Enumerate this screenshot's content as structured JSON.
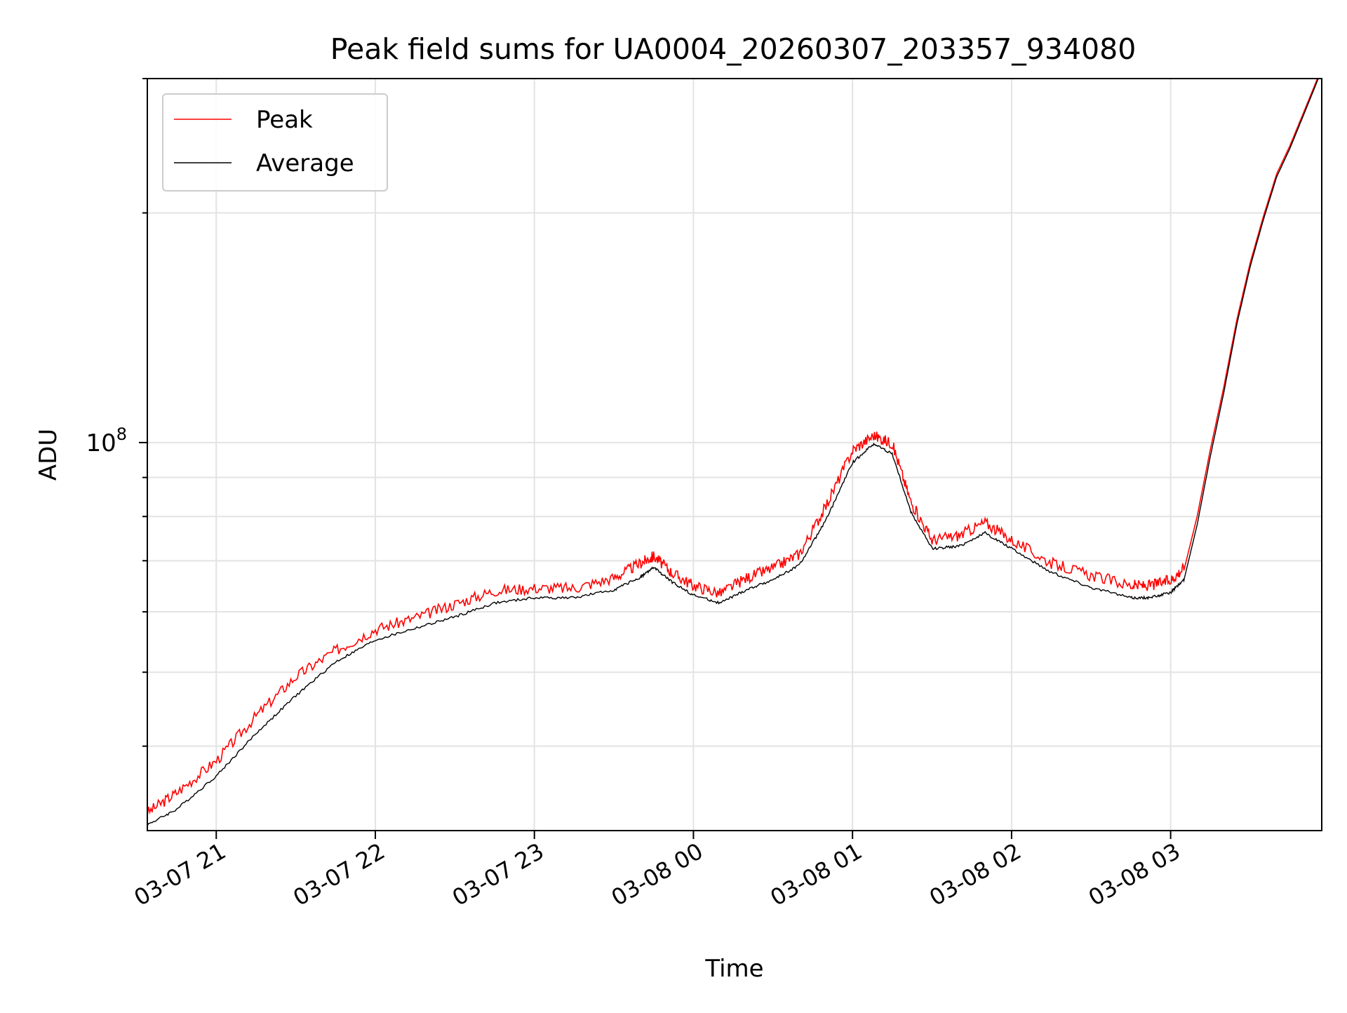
{
  "chart_data": {
    "type": "line",
    "title": "Peak field sums for UA0004_20260307_203357_934080",
    "xlabel": "Time",
    "ylabel": "ADU",
    "y_scale": "log",
    "grid": true,
    "legend": "top-left",
    "x_ticks": [
      "03-07 21",
      "03-07 22",
      "03-07 23",
      "03-08 00",
      "03-08 01",
      "03-08 02",
      "03-08 03"
    ],
    "y_tick_major": {
      "base": "10",
      "exponent": "8",
      "value": 100000000
    },
    "xlim": [
      "2026-03-07 20:34",
      "2026-03-08 03:57"
    ],
    "ylim": [
      31000000,
      300000000
    ],
    "x": [
      "2026-03-07 20:34",
      "2026-03-07 20:45",
      "2026-03-07 21:00",
      "2026-03-07 21:15",
      "2026-03-07 21:30",
      "2026-03-07 21:45",
      "2026-03-07 22:00",
      "2026-03-07 22:15",
      "2026-03-07 22:30",
      "2026-03-07 22:45",
      "2026-03-07 23:00",
      "2026-03-07 23:15",
      "2026-03-07 23:30",
      "2026-03-07 23:40",
      "2026-03-07 23:45",
      "2026-03-07 23:52",
      "2026-03-08 00:00",
      "2026-03-08 00:10",
      "2026-03-08 00:20",
      "2026-03-08 00:30",
      "2026-03-08 00:40",
      "2026-03-08 00:50",
      "2026-03-08 01:00",
      "2026-03-08 01:08",
      "2026-03-08 01:15",
      "2026-03-08 01:22",
      "2026-03-08 01:30",
      "2026-03-08 01:40",
      "2026-03-08 01:50",
      "2026-03-08 02:00",
      "2026-03-08 02:15",
      "2026-03-08 02:30",
      "2026-03-08 02:45",
      "2026-03-08 02:52",
      "2026-03-08 03:00",
      "2026-03-08 03:05",
      "2026-03-08 03:10",
      "2026-03-08 03:15",
      "2026-03-08 03:20",
      "2026-03-08 03:25",
      "2026-03-08 03:30",
      "2026-03-08 03:35",
      "2026-03-08 03:40",
      "2026-03-08 03:45",
      "2026-03-08 03:50",
      "2026-03-08 03:54",
      "2026-03-08 03:57"
    ],
    "series": [
      {
        "name": "Peak",
        "color": "#ff0000",
        "values": [
          32500000,
          34500000,
          38000000,
          43500000,
          49000000,
          53000000,
          56500000,
          58500000,
          61000000,
          63500000,
          64000000,
          64000000,
          66000000,
          69000000,
          70500000,
          67000000,
          64500000,
          63000000,
          66000000,
          68000000,
          71000000,
          82000000,
          97000000,
          101500000,
          99000000,
          83000000,
          74000000,
          75000000,
          78000000,
          74000000,
          69000000,
          66500000,
          64500000,
          64500000,
          65500000,
          68000000,
          80000000,
          98000000,
          118000000,
          145000000,
          172000000,
          198000000,
          225000000,
          245000000,
          270000000,
          292000000,
          310000000
        ]
      },
      {
        "name": "Average",
        "color": "#000000",
        "values": [
          31500000,
          33000000,
          36500000,
          41500000,
          46500000,
          51500000,
          55000000,
          57000000,
          59000000,
          61500000,
          62500000,
          62500000,
          64000000,
          66500000,
          68500000,
          65500000,
          63000000,
          61500000,
          64000000,
          66000000,
          69000000,
          79000000,
          94000000,
          99500000,
          96500000,
          81000000,
          72500000,
          73000000,
          76000000,
          72500000,
          67500000,
          64500000,
          62500000,
          62500000,
          63500000,
          66000000,
          78000000,
          96000000,
          116000000,
          143000000,
          170000000,
          196000000,
          223000000,
          243000000,
          268000000,
          290000000,
          308000000
        ]
      }
    ]
  }
}
